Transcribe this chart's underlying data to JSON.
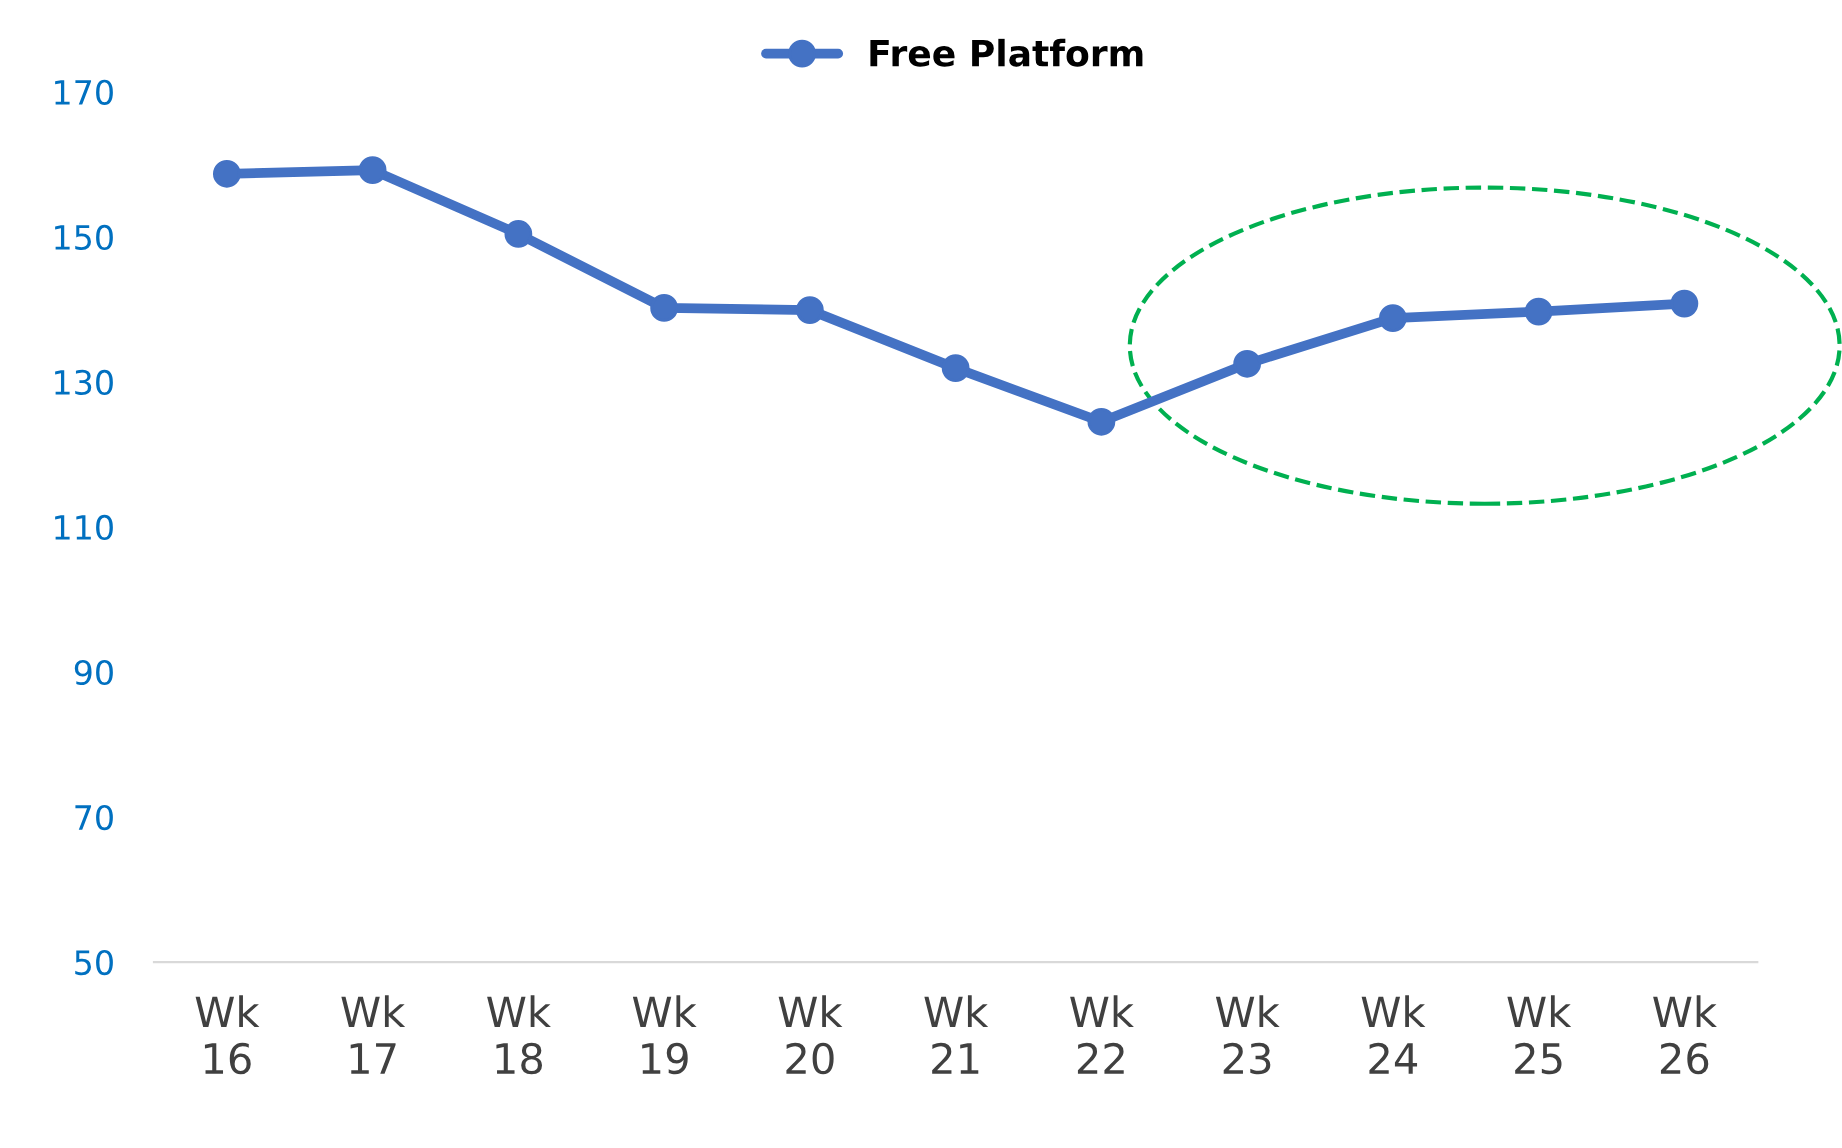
{
  "chart_data": {
    "type": "line",
    "categories": [
      "Wk 16",
      "Wk 17",
      "Wk 18",
      "Wk 19",
      "Wk 20",
      "Wk 21",
      "Wk 22",
      "Wk 23",
      "Wk 24",
      "Wk 25",
      "Wk 26"
    ],
    "series": [
      {
        "name": "Free Platform",
        "color": "#4472c4",
        "values": [
          158.7,
          159.2,
          150.4,
          140.2,
          139.9,
          131.9,
          124.5,
          132.5,
          138.8,
          139.7,
          140.8
        ]
      }
    ],
    "ylim": [
      50,
      170
    ],
    "yticks": [
      50,
      70,
      90,
      110,
      130,
      150,
      170
    ],
    "grid": false,
    "legend": "top",
    "marker": "circle",
    "line_style": "solid"
  }
}
